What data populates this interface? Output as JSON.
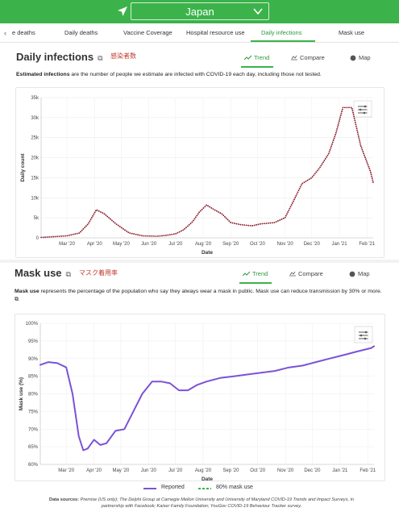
{
  "topbar": {
    "country": "Japan"
  },
  "tabs": [
    {
      "label": "e deaths"
    },
    {
      "label": "Daily deaths"
    },
    {
      "label": "Vaccine Coverage"
    },
    {
      "label": "Hospital resource use"
    },
    {
      "label": "Daily infections"
    },
    {
      "label": "Mask use"
    }
  ],
  "infections": {
    "title": "Daily infections",
    "note": "感染者数",
    "views": [
      "Trend",
      "Compare",
      "Map"
    ],
    "desc_strong": "Estimated infections",
    "desc_rest": " are the number of people we estimate are infected with COVID-19 each day, including those not tested."
  },
  "mask": {
    "title": "Mask use",
    "note": "マスク着用率",
    "views": [
      "Trend",
      "Compare",
      "Map"
    ],
    "desc_strong": "Mask use",
    "desc_rest": " represents the percentage of the population who say they always wear a mask in public. Mask use can reduce transmission by 30% or more."
  },
  "legend": {
    "reported": "Reported",
    "target": "80% mask use"
  },
  "footnote": {
    "label": "Data sources:",
    "text": " Premise (US only); The Delphi Group at Carnegie Mellon University and University of Maryland COVID-19 Trends and Impact Surveys, in partnership with Facebook; Kaiser Family Foundation; YouGov COVID-19 Behaviour Tracker survey."
  },
  "chart_data": [
    {
      "type": "line",
      "xlabel": "Date",
      "ylabel": "Daily count",
      "x_ticks": [
        "Mar '20",
        "Apr '20",
        "May '20",
        "Jun '20",
        "Jul '20",
        "Aug '20",
        "Sep '20",
        "Oct '20",
        "Nov '20",
        "Dec '20",
        "Jan '21",
        "Feb '21"
      ],
      "y_ticks": [
        "0",
        "5k",
        "10k",
        "15k",
        "20k",
        "25k",
        "30k",
        "35k"
      ],
      "ylim": [
        0,
        35000
      ],
      "line_color": "#8a1c2b",
      "line_style": "dotted",
      "grid": true,
      "series": [
        {
          "x": [
            "2020-02-01",
            "2020-03-01",
            "2020-03-15",
            "2020-03-25",
            "2020-04-03",
            "2020-04-12",
            "2020-04-25",
            "2020-05-10",
            "2020-05-25",
            "2020-06-10",
            "2020-06-20",
            "2020-07-01",
            "2020-07-10",
            "2020-07-20",
            "2020-07-28",
            "2020-08-05",
            "2020-08-12",
            "2020-08-22",
            "2020-09-01",
            "2020-09-12",
            "2020-09-25",
            "2020-10-05",
            "2020-10-20",
            "2020-11-01",
            "2020-11-10",
            "2020-11-20",
            "2020-12-01",
            "2020-12-10",
            "2020-12-20",
            "2020-12-28",
            "2021-01-05",
            "2021-01-15",
            "2021-01-25",
            "2021-02-05",
            "2021-02-08"
          ],
          "values": [
            100,
            500,
            1200,
            3500,
            7000,
            6000,
            3500,
            1200,
            500,
            400,
            600,
            1000,
            2000,
            4000,
            6500,
            8200,
            7200,
            6000,
            3800,
            3300,
            3000,
            3500,
            3800,
            5000,
            9000,
            13500,
            15000,
            17500,
            21000,
            26000,
            32500,
            32500,
            23000,
            16500,
            13800
          ]
        }
      ]
    },
    {
      "type": "line",
      "xlabel": "Date",
      "ylabel": "Mask use (%)",
      "x_ticks": [
        "Mar '20",
        "Apr '20",
        "May '20",
        "Jun '20",
        "Jul '20",
        "Aug '20",
        "Sep '20",
        "Oct '20",
        "Nov '20",
        "Dec '20",
        "Jan '21",
        "Feb '21"
      ],
      "y_ticks": [
        "60%",
        "65%",
        "70%",
        "75%",
        "80%",
        "85%",
        "90%",
        "95%",
        "100%"
      ],
      "ylim": [
        60,
        100
      ],
      "line_color": "#7b52d6",
      "grid": true,
      "series": [
        {
          "name": "Reported",
          "x": [
            "2020-02-01",
            "2020-02-10",
            "2020-02-20",
            "2020-03-01",
            "2020-03-08",
            "2020-03-15",
            "2020-03-20",
            "2020-03-25",
            "2020-04-01",
            "2020-04-08",
            "2020-04-15",
            "2020-04-25",
            "2020-05-05",
            "2020-05-15",
            "2020-05-25",
            "2020-06-05",
            "2020-06-15",
            "2020-06-25",
            "2020-07-05",
            "2020-07-15",
            "2020-07-25",
            "2020-08-05",
            "2020-08-20",
            "2020-09-05",
            "2020-09-20",
            "2020-10-05",
            "2020-10-20",
            "2020-11-05",
            "2020-11-20",
            "2020-12-05",
            "2020-12-20",
            "2021-01-05",
            "2021-01-20",
            "2021-02-05",
            "2021-02-08"
          ],
          "values": [
            88.2,
            89.0,
            88.7,
            87.5,
            80,
            68,
            64,
            64.5,
            67,
            65.5,
            66,
            69.5,
            70,
            75,
            80,
            83.5,
            83.5,
            83,
            81,
            81,
            82.5,
            83.5,
            84.5,
            85,
            85.5,
            86,
            86.5,
            87.5,
            88,
            89,
            90,
            91,
            92,
            93,
            93.5
          ]
        }
      ]
    }
  ]
}
